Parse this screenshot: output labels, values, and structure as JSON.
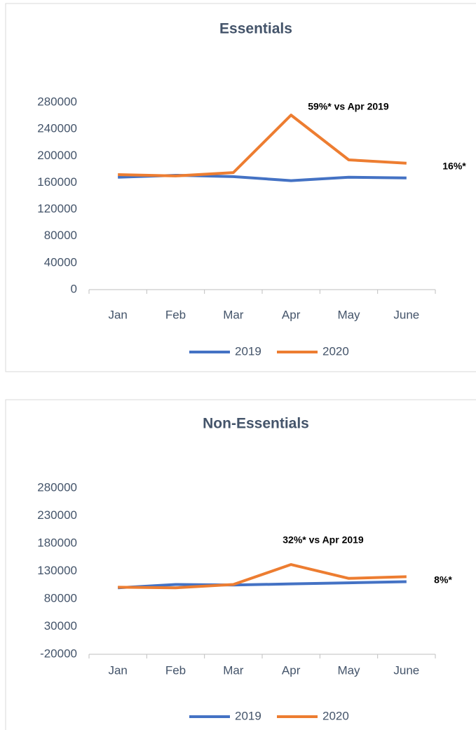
{
  "chart_data": [
    {
      "type": "line",
      "title": "Essentials",
      "categories": [
        "Jan",
        "Feb",
        "Mar",
        "Apr",
        "May",
        "June"
      ],
      "series": [
        {
          "name": "2019",
          "color": "#4472c4",
          "values": [
            168000,
            171000,
            169000,
            163000,
            168000,
            167000
          ]
        },
        {
          "name": "2020",
          "color": "#ed7d31",
          "values": [
            172000,
            170000,
            175000,
            261000,
            194000,
            189000
          ]
        }
      ],
      "ylim": [
        0,
        280000
      ],
      "yticks": [
        0,
        40000,
        80000,
        120000,
        160000,
        200000,
        240000,
        280000
      ],
      "annotations": [
        "59%* vs Apr 2019",
        "16%*"
      ],
      "legend": "bottom"
    },
    {
      "type": "line",
      "title": "Non-Essentials",
      "categories": [
        "Jan",
        "Feb",
        "Mar",
        "Apr",
        "May",
        "June"
      ],
      "series": [
        {
          "name": "2019",
          "color": "#4472c4",
          "values": [
            100000,
            106000,
            105000,
            107000,
            109000,
            111000
          ]
        },
        {
          "name": "2020",
          "color": "#ed7d31",
          "values": [
            101000,
            100000,
            106000,
            142000,
            117000,
            120000
          ]
        }
      ],
      "ylim": [
        -20000,
        280000
      ],
      "yticks": [
        -20000,
        30000,
        80000,
        130000,
        180000,
        230000,
        280000
      ],
      "annotations": [
        "32%* vs Apr 2019",
        "8%*"
      ],
      "legend": "bottom"
    }
  ]
}
